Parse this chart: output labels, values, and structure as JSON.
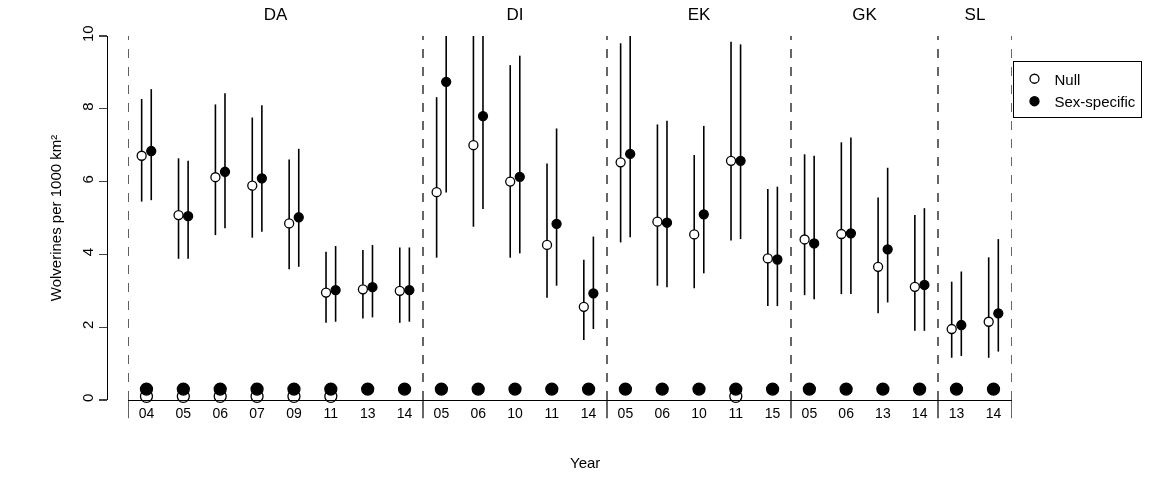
{
  "chart_data": [
    {
      "type": "scatter",
      "title": "DA",
      "ylabel": "Wolverines per 1000 km²",
      "ylim": [
        0,
        10
      ],
      "yticks": [
        0,
        2,
        4,
        6,
        8,
        10
      ],
      "marker": "circle",
      "categories": [
        "04",
        "05",
        "06",
        "07",
        "09",
        "11",
        "13",
        "14"
      ],
      "series": [
        {
          "color": "#ffffff",
          "values": [
            6.71,
            5.08,
            6.12,
            5.89,
            4.85,
            2.95,
            3.04,
            3.0
          ],
          "errors": [
            [
              5.45,
              8.27
            ],
            [
              3.88,
              6.64
            ],
            [
              4.53,
              8.12
            ],
            [
              4.46,
              7.76
            ],
            [
              3.59,
              6.61
            ],
            [
              2.12,
              4.07
            ],
            [
              2.24,
              4.12
            ],
            [
              2.12,
              4.19
            ]
          ]
        },
        {
          "color": "#000000",
          "values": [
            6.84,
            5.05,
            6.27,
            6.09,
            5.02,
            3.02,
            3.1,
            3.02
          ],
          "errors": [
            [
              5.49,
              8.54
            ],
            [
              3.88,
              6.57
            ],
            [
              4.72,
              8.43
            ],
            [
              4.62,
              8.1
            ],
            [
              3.66,
              6.9
            ],
            [
              2.15,
              4.23
            ],
            [
              2.27,
              4.26
            ],
            [
              2.15,
              4.19
            ]
          ]
        },
        {
          "color": "#ffffff",
          "values": [
            0.1,
            0.1,
            0.1,
            0.1,
            0.1,
            0.1,
            null,
            null
          ]
        },
        {
          "color": "#000000",
          "values": [
            0.3,
            0.3,
            0.3,
            0.3,
            0.3,
            0.3,
            0.3,
            0.3
          ]
        }
      ]
    },
    {
      "type": "scatter",
      "title": "DI",
      "xlabel": "Year",
      "ylim": [
        0,
        10
      ],
      "marker": "circle",
      "tick_labels": "x",
      "categories": [
        "05",
        "06",
        "10",
        "11",
        "14"
      ],
      "series": [
        {
          "color": "#ffffff",
          "values": [
            5.71,
            7.0,
            6.0,
            4.26,
            2.56
          ],
          "errors": [
            [
              3.91,
              8.32
            ],
            [
              4.76,
              10
            ],
            [
              3.91,
              9.2
            ],
            [
              2.81,
              6.5
            ],
            [
              1.65,
              3.85
            ]
          ]
        },
        {
          "color": "#000000",
          "values": [
            8.74,
            7.8,
            6.13,
            4.84,
            2.93
          ],
          "errors": [
            [
              5.7,
              10
            ],
            [
              5.25,
              10
            ],
            [
              4.03,
              9.46
            ],
            [
              3.14,
              7.46
            ],
            [
              1.95,
              4.49
            ]
          ]
        },
        {
          "color": "#000000",
          "values": [
            0.3,
            0.3,
            0.3,
            0.3,
            0.3
          ]
        }
      ]
    },
    {
      "type": "scatter",
      "title": "EK",
      "ylim": [
        0,
        10
      ],
      "marker": "circle",
      "tick_labels": "x",
      "categories": [
        "05",
        "06",
        "10",
        "11",
        "15"
      ],
      "series": [
        {
          "color": "#ffffff",
          "values": [
            6.53,
            4.9,
            4.55,
            6.57,
            3.89
          ],
          "errors": [
            [
              4.33,
              9.8
            ],
            [
              3.14,
              7.57
            ],
            [
              3.07,
              6.73
            ],
            [
              4.38,
              9.84
            ],
            [
              2.58,
              5.8
            ]
          ]
        },
        {
          "color": "#000000",
          "values": [
            6.76,
            4.87,
            5.1,
            6.57,
            3.86
          ],
          "errors": [
            [
              4.47,
              10
            ],
            [
              3.1,
              7.67
            ],
            [
              3.48,
              7.53
            ],
            [
              4.42,
              9.77
            ],
            [
              2.58,
              5.86
            ]
          ]
        },
        {
          "color": "#ffffff",
          "values": [
            null,
            null,
            null,
            0.1,
            null
          ]
        },
        {
          "color": "#000000",
          "values": [
            0.3,
            0.3,
            0.3,
            0.3,
            0.3
          ]
        }
      ]
    },
    {
      "type": "scatter",
      "title": "GK",
      "ylim": [
        0,
        10
      ],
      "marker": "circle",
      "tick_labels": "x",
      "categories": [
        "05",
        "06",
        "13",
        "14"
      ],
      "series": [
        {
          "color": "#ffffff",
          "values": [
            4.41,
            4.56,
            3.66,
            3.11
          ],
          "errors": [
            [
              2.88,
              6.75
            ],
            [
              2.91,
              7.08
            ],
            [
              2.38,
              5.56
            ],
            [
              1.9,
              5.08
            ]
          ]
        },
        {
          "color": "#000000",
          "values": [
            4.3,
            4.58,
            4.14,
            3.16
          ],
          "errors": [
            [
              2.77,
              6.71
            ],
            [
              2.91,
              7.21
            ],
            [
              2.68,
              6.38
            ],
            [
              1.9,
              5.27
            ]
          ]
        },
        {
          "color": "#000000",
          "values": [
            0.3,
            0.3,
            0.3,
            0.3
          ]
        }
      ]
    },
    {
      "type": "scatter",
      "title": "SL",
      "ylim": [
        0,
        10
      ],
      "marker": "circle",
      "tick_labels": "x",
      "legend": "right",
      "categories": [
        "13",
        "14"
      ],
      "series": [
        {
          "name": "Null",
          "color": "#ffffff",
          "values": [
            1.95,
            2.15
          ],
          "errors": [
            [
              1.16,
              3.25
            ],
            [
              1.16,
              3.92
            ]
          ]
        },
        {
          "name": "Sex-specific",
          "color": "#000000",
          "values": [
            2.06,
            2.38
          ],
          "errors": [
            [
              1.21,
              3.53
            ],
            [
              1.33,
              4.42
            ]
          ]
        },
        {
          "color": "#000000",
          "values": [
            0.3,
            0.3
          ]
        }
      ]
    }
  ]
}
